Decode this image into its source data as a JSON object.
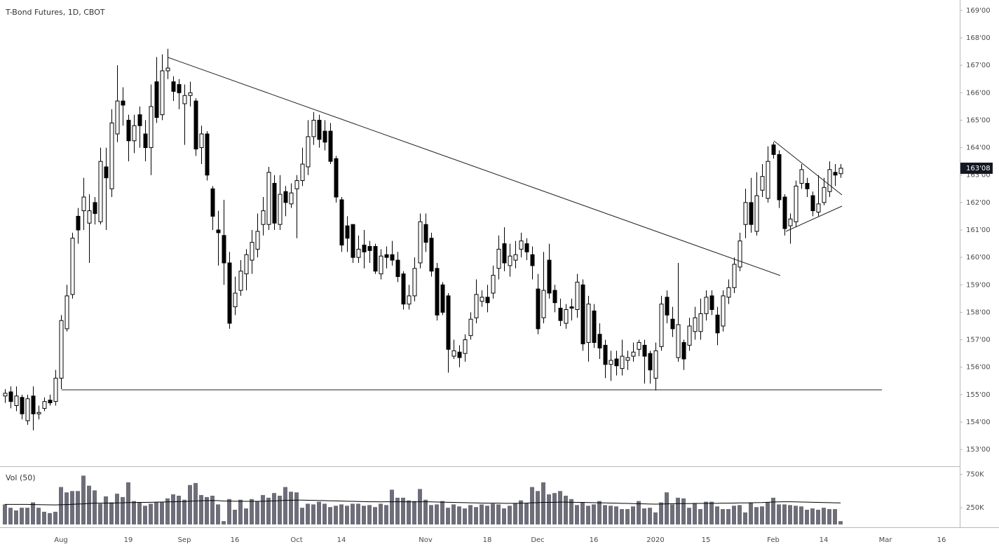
{
  "chart_data": {
    "type": "candlestick",
    "title": "T-Bond Futures, 1D, CBOT",
    "volume_label": "Vol (50)",
    "up_color": "#ffffff",
    "down_color": "#000000",
    "outline_color": "#000000",
    "volume_color": "#6e6e7a",
    "ma_color": "#000000",
    "grid": false,
    "ylim": [
      152.39,
      169.38
    ],
    "yticks": [
      {
        "value": 153,
        "label": "153'00"
      },
      {
        "value": 154,
        "label": "154'00"
      },
      {
        "value": 155,
        "label": "155'00"
      },
      {
        "value": 156,
        "label": "156'00"
      },
      {
        "value": 157,
        "label": "157'00"
      },
      {
        "value": 158,
        "label": "158'00"
      },
      {
        "value": 159,
        "label": "159'00"
      },
      {
        "value": 160,
        "label": "160'00"
      },
      {
        "value": 161,
        "label": "161'00"
      },
      {
        "value": 162,
        "label": "162'00"
      },
      {
        "value": 163,
        "label": "163'00"
      },
      {
        "value": 164,
        "label": "164'00"
      },
      {
        "value": 165,
        "label": "165'00"
      },
      {
        "value": 166,
        "label": "166'00"
      },
      {
        "value": 167,
        "label": "167'00"
      },
      {
        "value": 168,
        "label": "168'00"
      },
      {
        "value": 169,
        "label": "169'00"
      }
    ],
    "volume_lim": [
      0,
      860
    ],
    "volume_ticks": [
      {
        "value": 250,
        "label": "250K"
      },
      {
        "value": 750,
        "label": "750K"
      }
    ],
    "last_price": {
      "value": 163.25,
      "label": "163'08"
    },
    "categories": [
      null,
      null,
      null,
      null,
      null,
      null,
      null,
      null,
      null,
      null,
      "Aug",
      null,
      null,
      null,
      null,
      null,
      null,
      null,
      null,
      null,
      null,
      null,
      "19",
      null,
      null,
      null,
      null,
      null,
      null,
      null,
      null,
      null,
      "Sep",
      null,
      null,
      null,
      null,
      null,
      null,
      null,
      null,
      "16",
      null,
      null,
      null,
      null,
      null,
      null,
      null,
      null,
      null,
      null,
      "Oct",
      null,
      null,
      null,
      null,
      null,
      null,
      null,
      "14",
      null,
      null,
      null,
      null,
      null,
      null,
      null,
      null,
      null,
      null,
      null,
      null,
      null,
      null,
      "Nov",
      null,
      null,
      null,
      null,
      null,
      null,
      null,
      null,
      null,
      null,
      "18",
      null,
      null,
      null,
      null,
      null,
      null,
      null,
      null,
      "Dec",
      null,
      null,
      null,
      null,
      null,
      null,
      null,
      null,
      null,
      "16",
      null,
      null,
      null,
      null,
      null,
      null,
      null,
      null,
      null,
      null,
      "2020",
      null,
      null,
      null,
      null,
      null,
      null,
      null,
      null,
      "15",
      null,
      null,
      null,
      null,
      null,
      null,
      null,
      null,
      null,
      null,
      null,
      "Feb",
      null,
      null,
      null,
      null,
      null,
      null,
      null,
      null,
      "14",
      null,
      null,
      null,
      null,
      null,
      null,
      null,
      null,
      null,
      null,
      "Mar",
      null,
      null,
      null,
      null,
      null,
      null,
      null,
      null,
      null,
      "16"
    ],
    "open": [
      154.95,
      155.1,
      154.6,
      154.9,
      154.05,
      154.95,
      154.3,
      154.5,
      154.8,
      154.75,
      155.6,
      157.4,
      158.65,
      161.5,
      161.7,
      161.25,
      162.0,
      161.3,
      163.3,
      162.5,
      164.5,
      165.7,
      165.0,
      164.25,
      165.2,
      164.5,
      164.0,
      166.4,
      165.2,
      166.8,
      166.4,
      166.3,
      165.6,
      165.9,
      165.7,
      164.0,
      164.5,
      162.5,
      161.0,
      160.8,
      159.8,
      158.2,
      158.8,
      159.4,
      159.9,
      160.3,
      161.2,
      161.2,
      162.7,
      161.2,
      162.4,
      161.95,
      162.5,
      162.8,
      163.3,
      164.4,
      165.0,
      164.6,
      164.6,
      163.6,
      162.1,
      161.15,
      161.2,
      160.0,
      160.45,
      160.4,
      160.4,
      159.4,
      160.1,
      160.1,
      159.9,
      159.4,
      158.3,
      158.6,
      159.8,
      161.2,
      160.7,
      159.6,
      159.0,
      158.6,
      156.4,
      156.55,
      156.5,
      157.15,
      157.8,
      158.4,
      158.55,
      158.7,
      159.6,
      160.5,
      159.7,
      159.9,
      160.3,
      160.5,
      160.1,
      158.85,
      157.8,
      159.9,
      158.8,
      158.15,
      157.6,
      158.2,
      158.1,
      159.0,
      156.9,
      158.05,
      157.2,
      156.8,
      156.1,
      156.3,
      155.95,
      156.25,
      156.4,
      156.65,
      156.8,
      156.5,
      155.6,
      156.75,
      158.55,
      157.75,
      156.35,
      156.9,
      156.8,
      157.3,
      157.3,
      157.95,
      158.6,
      157.9,
      157.5,
      158.55,
      158.9,
      159.65,
      161.2,
      162.0,
      160.95,
      162.45,
      162.15,
      164.1,
      163.75,
      162.2,
      161.15,
      161.3,
      162.7,
      162.7,
      162.25,
      161.65,
      162.0,
      162.4,
      163.1,
      163.05,
      null,
      null,
      null,
      null,
      null,
      null,
      null,
      null,
      null,
      null,
      null,
      null,
      null,
      null,
      null,
      null,
      null,
      null
    ],
    "high": [
      155.2,
      155.3,
      155.3,
      155.0,
      155.0,
      155.3,
      154.6,
      154.9,
      155.0,
      155.9,
      157.9,
      159.0,
      160.9,
      161.8,
      162.9,
      162.3,
      162.2,
      164.0,
      164.0,
      165.4,
      167.0,
      166.2,
      165.2,
      165.2,
      165.5,
      165.0,
      166.3,
      167.3,
      167.4,
      167.6,
      166.6,
      166.5,
      166.3,
      166.4,
      165.8,
      164.8,
      164.6,
      162.6,
      161.7,
      162.1,
      160.2,
      159.3,
      159.9,
      160.3,
      161.0,
      161.6,
      162.2,
      163.3,
      163.0,
      163.0,
      162.6,
      162.7,
      163.0,
      164.0,
      165.0,
      165.3,
      165.2,
      165.0,
      164.9,
      163.7,
      162.2,
      161.5,
      161.2,
      160.8,
      161.0,
      160.6,
      160.5,
      160.3,
      160.4,
      160.6,
      160.2,
      159.5,
      159.0,
      160.0,
      161.6,
      161.6,
      160.9,
      159.8,
      159.1,
      158.7,
      157.0,
      156.8,
      157.2,
      158.0,
      159.2,
      158.8,
      159.0,
      159.7,
      160.8,
      161.1,
      160.5,
      160.6,
      160.9,
      160.7,
      160.4,
      159.4,
      160.2,
      160.5,
      159.0,
      158.5,
      158.3,
      158.5,
      159.4,
      159.2,
      158.6,
      158.3,
      157.6,
      157.0,
      156.6,
      156.6,
      157.0,
      156.6,
      156.9,
      157.0,
      157.0,
      156.6,
      156.9,
      158.6,
      158.8,
      158.2,
      159.8,
      157.0,
      157.8,
      158.2,
      158.5,
      158.8,
      158.8,
      158.2,
      158.8,
      159.2,
      160.0,
      160.9,
      162.5,
      162.9,
      163.1,
      163.4,
      164.05,
      164.2,
      163.9,
      162.3,
      161.6,
      162.8,
      163.4,
      162.9,
      162.4,
      163.0,
      162.9,
      163.5,
      163.4,
      163.4,
      null,
      null,
      null,
      null,
      null,
      null,
      null,
      null,
      null,
      null,
      null,
      null,
      null,
      null,
      null,
      null,
      null,
      null
    ],
    "low": [
      154.7,
      154.5,
      154.4,
      154.1,
      153.9,
      153.7,
      154.1,
      154.4,
      154.6,
      154.6,
      155.2,
      157.3,
      158.5,
      160.5,
      161.0,
      159.8,
      161.2,
      161.2,
      161.0,
      162.2,
      164.2,
      164.8,
      163.5,
      163.8,
      164.0,
      163.5,
      163.0,
      164.9,
      165.0,
      166.5,
      165.7,
      165.4,
      164.1,
      165.5,
      163.7,
      163.4,
      162.8,
      161.0,
      159.7,
      159.0,
      157.4,
      157.9,
      158.6,
      158.8,
      159.4,
      160.0,
      160.8,
      161.0,
      161.0,
      161.0,
      161.5,
      161.8,
      160.7,
      162.6,
      163.0,
      164.1,
      164.0,
      163.9,
      163.4,
      162.0,
      160.2,
      160.2,
      159.8,
      159.8,
      159.6,
      159.8,
      159.4,
      159.2,
      159.6,
      159.7,
      159.1,
      158.1,
      158.1,
      158.4,
      159.6,
      160.2,
      159.3,
      157.7,
      157.9,
      155.8,
      156.3,
      156.0,
      156.2,
      157.0,
      157.6,
      158.2,
      158.0,
      158.5,
      159.2,
      159.5,
      159.3,
      159.6,
      160.0,
      159.9,
      159.2,
      157.2,
      157.6,
      158.5,
      158.0,
      157.5,
      157.4,
      157.7,
      157.8,
      156.6,
      156.2,
      156.7,
      156.3,
      155.6,
      155.5,
      155.7,
      155.7,
      155.9,
      156.2,
      156.4,
      155.4,
      155.4,
      155.15,
      156.6,
      157.6,
      157.1,
      156.2,
      155.9,
      156.6,
      157.0,
      157.0,
      157.7,
      157.9,
      156.8,
      157.3,
      158.3,
      158.7,
      159.5,
      160.7,
      160.9,
      160.8,
      162.2,
      162.0,
      163.6,
      161.8,
      160.8,
      160.5,
      161.1,
      162.5,
      162.2,
      161.5,
      161.5,
      161.9,
      162.2,
      162.6,
      162.9,
      null,
      null,
      null,
      null,
      null,
      null,
      null,
      null,
      null,
      null,
      null,
      null,
      null,
      null,
      null,
      null,
      null,
      null
    ],
    "close": [
      155.05,
      154.75,
      154.95,
      154.3,
      154.85,
      154.3,
      154.35,
      154.75,
      154.7,
      155.6,
      157.7,
      158.6,
      160.7,
      161.0,
      162.2,
      161.7,
      161.6,
      163.5,
      162.9,
      164.9,
      165.7,
      165.55,
      164.25,
      164.8,
      164.8,
      164.0,
      165.5,
      165.1,
      166.8,
      166.9,
      166.05,
      166.0,
      165.9,
      166.0,
      163.95,
      164.5,
      163.0,
      161.5,
      160.9,
      159.8,
      157.6,
      158.7,
      159.5,
      160.1,
      160.55,
      160.95,
      161.7,
      163.1,
      161.25,
      162.3,
      162.0,
      162.35,
      162.8,
      163.4,
      164.4,
      165.0,
      164.3,
      164.2,
      163.5,
      162.2,
      160.45,
      160.7,
      160.0,
      160.3,
      160.2,
      160.25,
      159.5,
      160.05,
      160.0,
      159.9,
      159.3,
      158.3,
      158.6,
      159.6,
      161.3,
      160.55,
      159.5,
      157.9,
      158.0,
      156.65,
      156.6,
      156.35,
      157.0,
      157.75,
      158.65,
      158.55,
      158.35,
      159.35,
      160.3,
      159.8,
      160.05,
      160.1,
      160.6,
      160.2,
      159.7,
      157.4,
      158.8,
      158.7,
      158.35,
      157.7,
      158.1,
      158.15,
      159.1,
      156.85,
      158.3,
      156.9,
      156.7,
      156.1,
      156.25,
      156.05,
      156.4,
      156.35,
      156.55,
      156.9,
      156.4,
      155.9,
      156.6,
      158.3,
      157.9,
      157.4,
      157.55,
      156.3,
      157.5,
      157.8,
      157.95,
      158.55,
      158.1,
      157.25,
      158.6,
      158.9,
      159.75,
      160.6,
      162.0,
      161.2,
      162.25,
      162.95,
      163.5,
      163.75,
      162.1,
      161.05,
      161.4,
      162.6,
      163.2,
      162.5,
      161.7,
      161.95,
      162.55,
      163.2,
      163.0,
      163.25,
      null,
      null,
      null,
      null,
      null,
      null,
      null,
      null,
      null,
      null,
      null,
      null,
      null,
      null,
      null,
      null,
      null,
      null
    ],
    "volume": [
      300,
      250,
      210,
      250,
      250,
      330,
      250,
      190,
      170,
      190,
      560,
      480,
      500,
      500,
      730,
      580,
      510,
      310,
      420,
      330,
      460,
      410,
      630,
      350,
      330,
      280,
      310,
      330,
      330,
      390,
      450,
      430,
      370,
      590,
      620,
      440,
      410,
      430,
      300,
      50,
      380,
      220,
      370,
      240,
      380,
      350,
      440,
      400,
      470,
      430,
      560,
      490,
      480,
      250,
      310,
      300,
      340,
      310,
      260,
      280,
      300,
      280,
      310,
      310,
      280,
      290,
      260,
      310,
      290,
      520,
      400,
      400,
      360,
      350,
      530,
      370,
      290,
      300,
      350,
      250,
      300,
      270,
      240,
      290,
      260,
      300,
      280,
      310,
      300,
      240,
      280,
      320,
      360,
      320,
      560,
      500,
      630,
      450,
      470,
      500,
      430,
      380,
      290,
      330,
      280,
      300,
      350,
      290,
      280,
      270,
      230,
      230,
      270,
      350,
      240,
      250,
      180,
      330,
      480,
      300,
      400,
      390,
      250,
      320,
      230,
      340,
      340,
      270,
      230,
      230,
      280,
      290,
      180,
      330,
      260,
      270,
      330,
      400,
      300,
      300,
      290,
      280,
      270,
      220,
      240,
      220,
      250,
      230,
      230,
      50,
      null,
      null,
      null,
      null,
      null,
      null,
      null,
      null,
      null,
      null,
      null,
      null,
      null,
      null,
      null,
      null,
      null,
      null
    ],
    "volume_ma": [
      300,
      300,
      300,
      300,
      300,
      298,
      296,
      295,
      294,
      292,
      295,
      298,
      302,
      305,
      308,
      314,
      318,
      318,
      320,
      320,
      322,
      324,
      328,
      328,
      330,
      330,
      332,
      334,
      336,
      338,
      340,
      342,
      344,
      348,
      352,
      354,
      356,
      358,
      356,
      350,
      350,
      348,
      348,
      346,
      346,
      346,
      348,
      350,
      352,
      356,
      360,
      362,
      364,
      364,
      362,
      360,
      358,
      356,
      354,
      352,
      350,
      348,
      346,
      344,
      342,
      340,
      340,
      338,
      340,
      340,
      340,
      340,
      338,
      338,
      340,
      340,
      338,
      336,
      334,
      332,
      330,
      328,
      326,
      324,
      322,
      320,
      318,
      318,
      318,
      316,
      316,
      316,
      318,
      320,
      324,
      326,
      330,
      330,
      332,
      334,
      334,
      332,
      330,
      330,
      328,
      326,
      324,
      322,
      320,
      318,
      316,
      314,
      312,
      310,
      308,
      306,
      304,
      306,
      308,
      310,
      312,
      312,
      312,
      314,
      314,
      316,
      316,
      316,
      318,
      318,
      320,
      322,
      322,
      324,
      326,
      328,
      332,
      336,
      338,
      340,
      340,
      338,
      336,
      334,
      332,
      330,
      328,
      326,
      324,
      322,
      null,
      null,
      null,
      null,
      null,
      null,
      null,
      null,
      null,
      null,
      null,
      null,
      null,
      null,
      null,
      null,
      null,
      null
    ]
  }
}
